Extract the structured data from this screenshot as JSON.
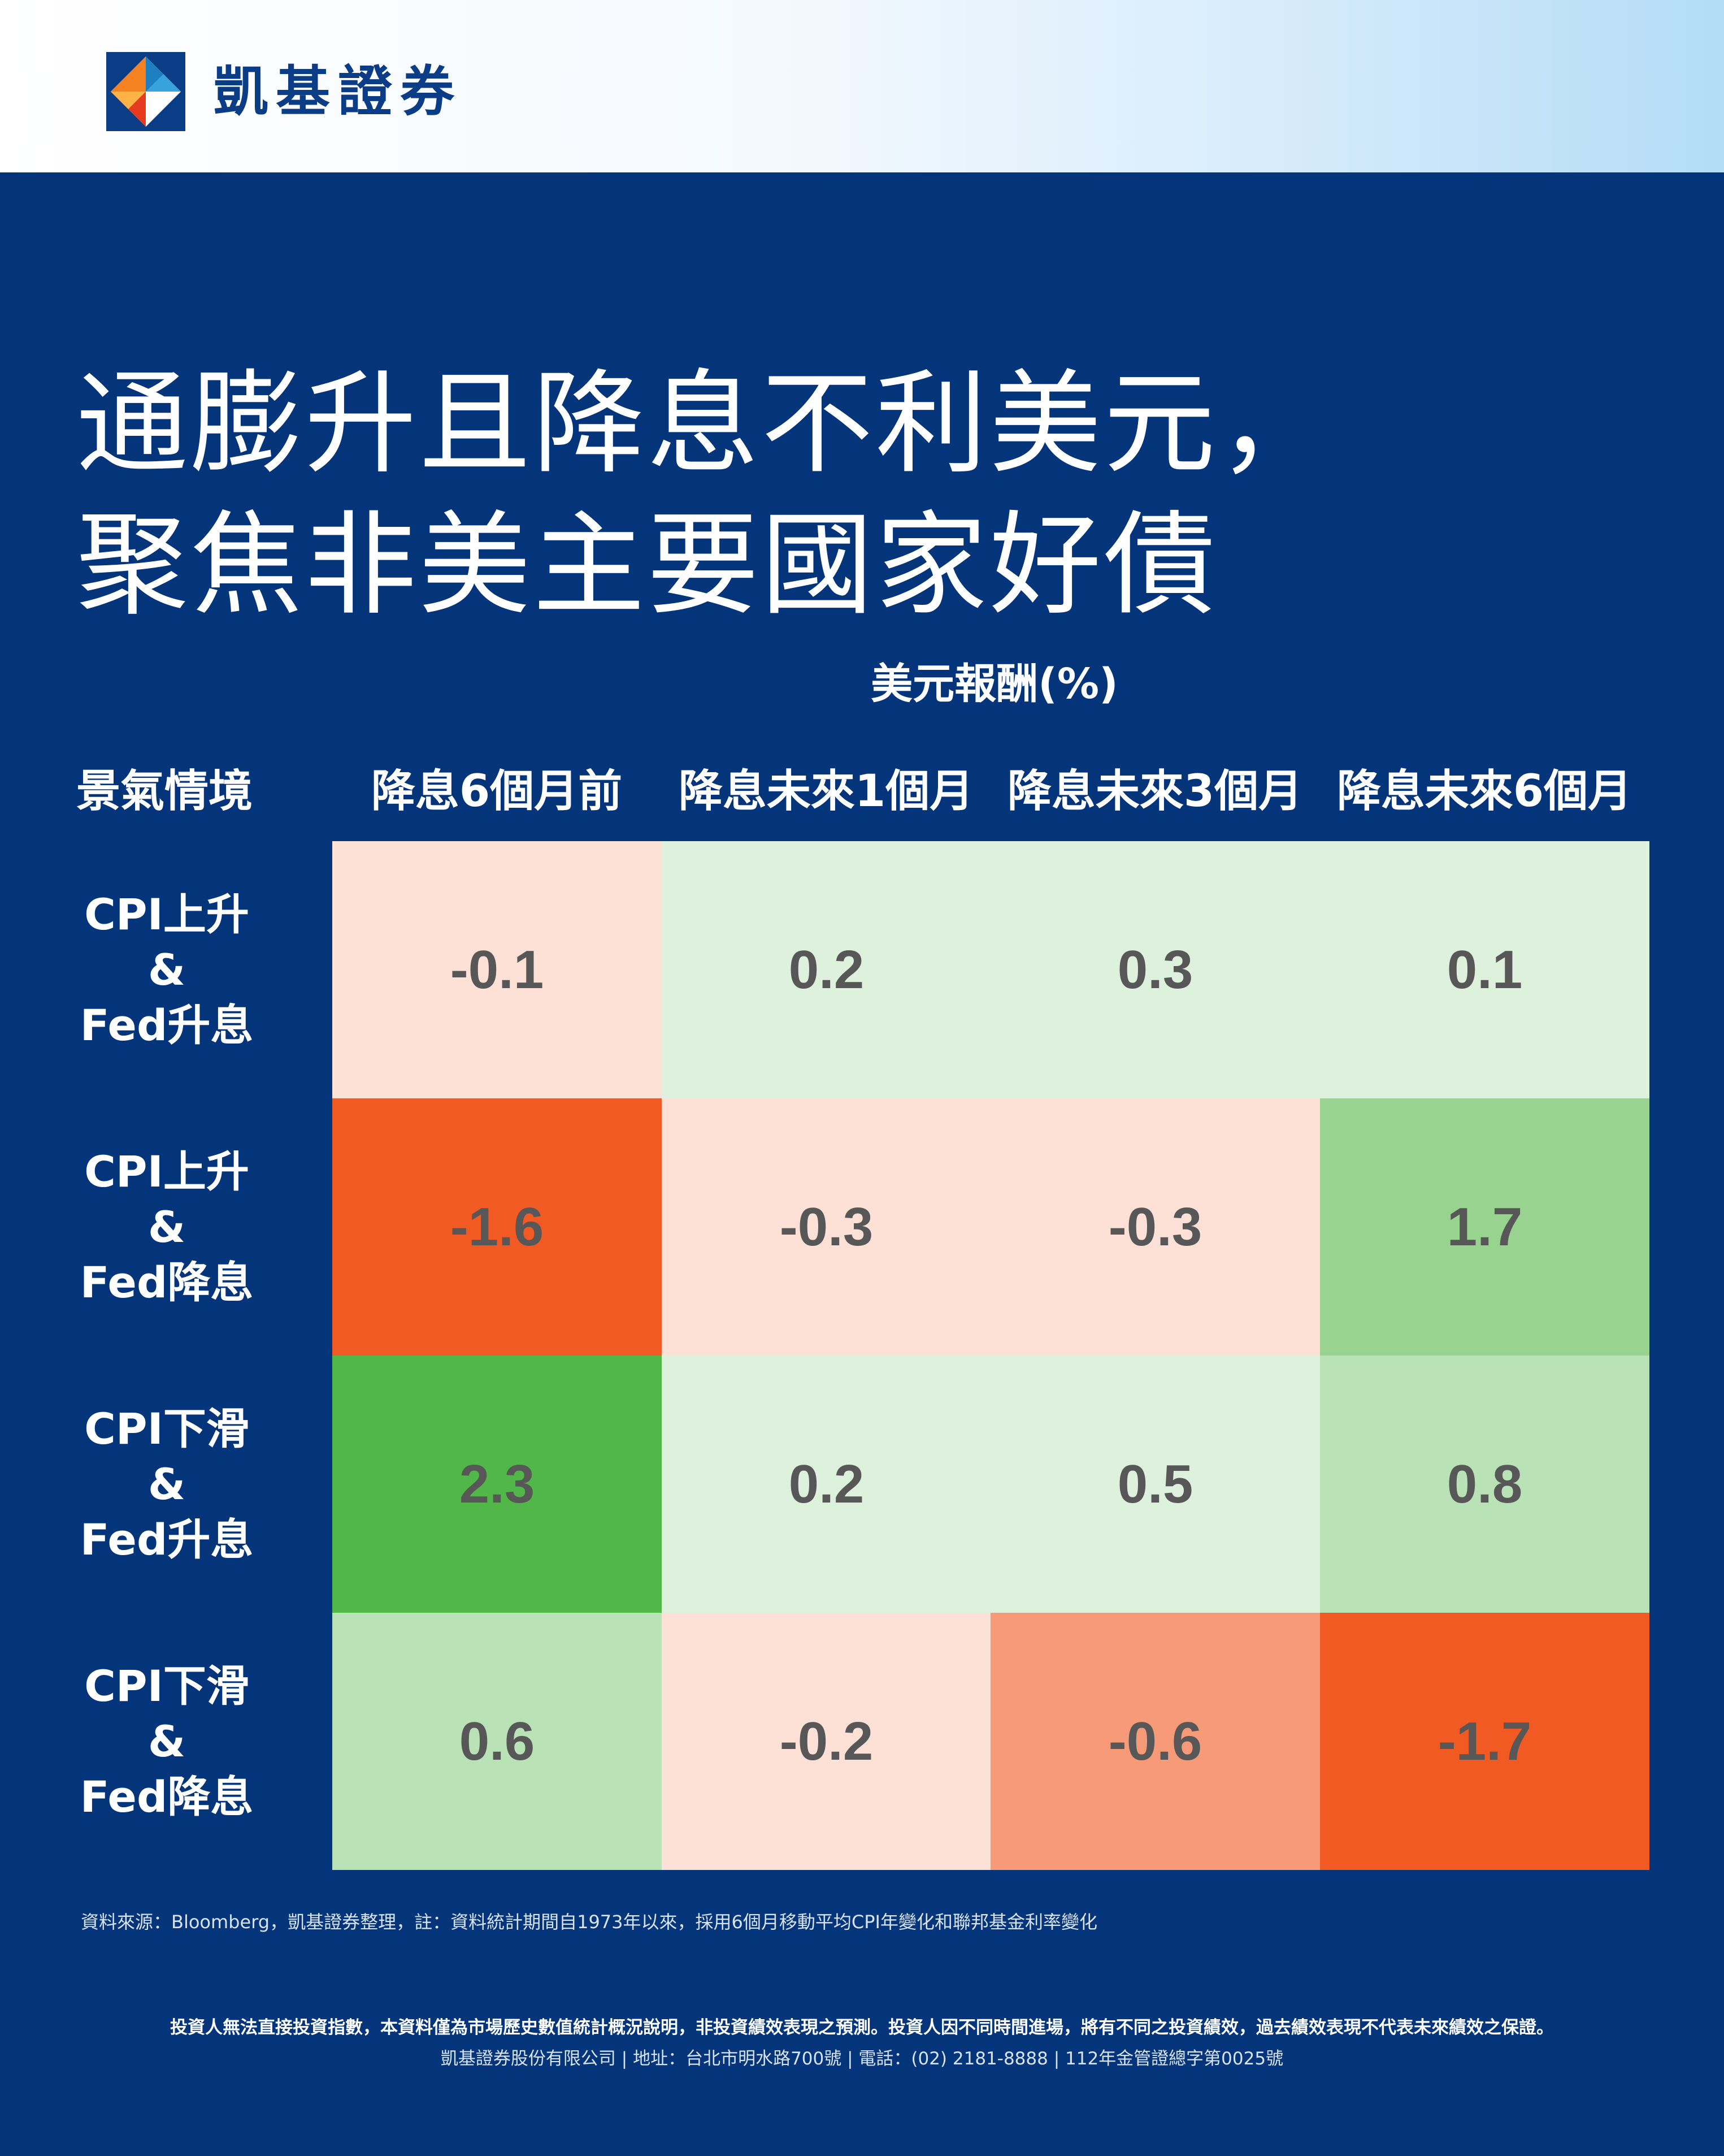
{
  "brand": {
    "name": "凱基證券"
  },
  "title": {
    "line1": "通膨升且降息不利美元，",
    "line2": "聚焦非美主要國家好債"
  },
  "colors": {
    "background": "#04357a",
    "cell_text": "#575757"
  },
  "chart_data": {
    "type": "heatmap",
    "title": "美元報酬(%)",
    "row_header_title": "景氣情境",
    "columns": [
      "降息6個月前",
      "降息未來1個月",
      "降息未來3個月",
      "降息未來6個月"
    ],
    "rows": [
      {
        "label": [
          "CPI上升",
          "&",
          "Fed升息"
        ],
        "values": [
          "-0.1",
          "0.2",
          "0.3",
          "0.1"
        ]
      },
      {
        "label": [
          "CPI上升",
          "&",
          "Fed降息"
        ],
        "values": [
          "-1.6",
          "-0.3",
          "-0.3",
          "1.7"
        ]
      },
      {
        "label": [
          "CPI下滑",
          "&",
          "Fed升息"
        ],
        "values": [
          "2.3",
          "0.2",
          "0.5",
          "0.8"
        ]
      },
      {
        "label": [
          "CPI下滑",
          "&",
          "Fed降息"
        ],
        "values": [
          "0.6",
          "-0.2",
          "-0.6",
          "-1.7"
        ]
      }
    ],
    "color_scale": {
      "strong_negative": "#f15a22",
      "medium_negative": "#f69a78",
      "light_negative": "#fde0d6",
      "light_positive": "#ddf1dd",
      "medium_positive": "#b9e3b6",
      "strong_positive": "#98d38f",
      "max_positive": "#50b748"
    }
  },
  "footer": {
    "source": "資料來源：Bloomberg，凱基證券整理，註：資料統計期間自1973年以來，採用6個月移動平均CPI年變化和聯邦基金利率變化",
    "disclaimer": "投資人無法直接投資指數，本資料僅為市場歷史數值統計概況說明，非投資績效表現之預測。投資人因不同時間進場，將有不同之投資績效，過去績效表現不代表未來績效之保證。",
    "company_info": "凱基證券股份有限公司 | 地址：台北市明水路700號 | 電話：(02) 2181-8888 | 112年金管證總字第0025號"
  }
}
